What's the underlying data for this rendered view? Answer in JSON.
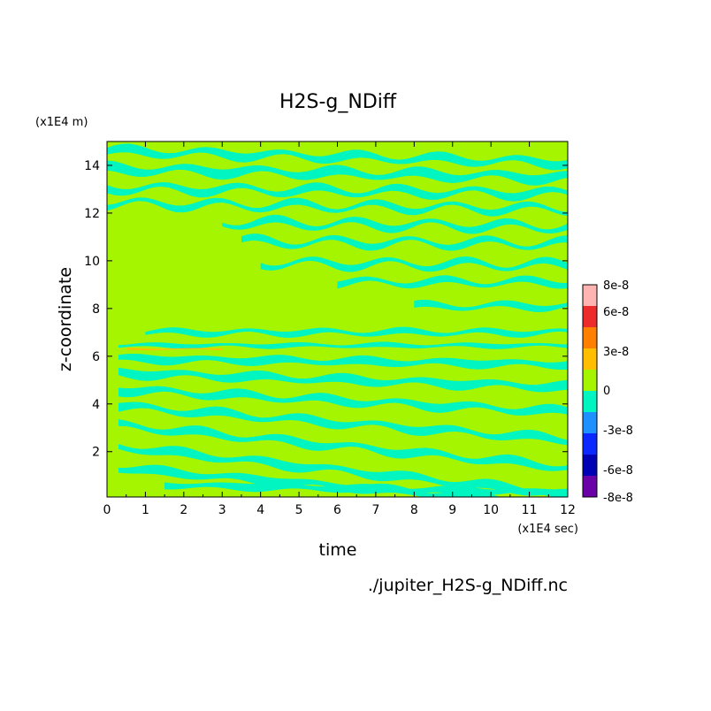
{
  "chart_data": {
    "type": "heatmap",
    "title": "H2S-g_NDiff",
    "xlabel": "time",
    "ylabel": "z-coordinate",
    "x_unit_label": "(x1E4 sec)",
    "y_unit_label": "(x1E4 m)",
    "source_label": "./jupiter_H2S-g_NDiff.nc",
    "xlim": [
      0,
      12
    ],
    "ylim": [
      0.1,
      15
    ],
    "x_ticks": [
      "0",
      "1",
      "2",
      "3",
      "4",
      "5",
      "6",
      "7",
      "8",
      "9",
      "10",
      "11",
      "12"
    ],
    "y_ticks": [
      "2",
      "4",
      "6",
      "8",
      "10",
      "12",
      "14"
    ],
    "grid": false,
    "colorbar": {
      "position": "right",
      "tick_labels": [
        "8e-8",
        "6e-8",
        "3e-8",
        "0",
        "-3e-8",
        "-6e-8",
        "-8e-8"
      ],
      "levels": [
        {
          "color": "#ffb4b4"
        },
        {
          "color": "#ee2b2b"
        },
        {
          "color": "#ff7f00"
        },
        {
          "color": "#ffbf00"
        },
        {
          "color": "#a6f500"
        },
        {
          "color": "#00f5c0"
        },
        {
          "color": "#1e90ff"
        },
        {
          "color": "#0a28ff"
        },
        {
          "color": "#0000b4"
        },
        {
          "color": "#6a00a8"
        }
      ]
    },
    "background_color": "#a6f500",
    "bands": [
      {
        "z": 14.6,
        "t0": 0,
        "t1": 12,
        "slope": -0.04,
        "w": 0.28,
        "wav": 0.15,
        "color": "#00f5c0"
      },
      {
        "z": 13.85,
        "t0": 0,
        "t1": 12,
        "slope": -0.03,
        "w": 0.32,
        "wav": 0.15,
        "color": "#00f5c0"
      },
      {
        "z": 13.05,
        "t0": 0,
        "t1": 12,
        "slope": -0.02,
        "w": 0.26,
        "wav": 0.18,
        "color": "#00f5c0"
      },
      {
        "z": 12.4,
        "t0": 0,
        "t1": 12,
        "slope": -0.02,
        "w": 0.22,
        "wav": 0.2,
        "color": "#00f5c0"
      },
      {
        "z": 11.6,
        "t0": 3,
        "t1": 12,
        "slope": -0.02,
        "w": 0.24,
        "wav": 0.2,
        "color": "#00f5c0"
      },
      {
        "z": 10.8,
        "t0": 3.5,
        "t1": 12,
        "slope": -0.01,
        "w": 0.22,
        "wav": 0.2,
        "color": "#00f5c0"
      },
      {
        "z": 9.9,
        "t0": 4,
        "t1": 12,
        "slope": -0.01,
        "w": 0.22,
        "wav": 0.2,
        "color": "#00f5c0"
      },
      {
        "z": 9.1,
        "t0": 6,
        "t1": 12,
        "slope": 0,
        "w": 0.22,
        "wav": 0.15,
        "color": "#00f5c0"
      },
      {
        "z": 8.1,
        "t0": 8,
        "t1": 12,
        "slope": 0,
        "w": 0.22,
        "wav": 0.12,
        "color": "#00f5c0"
      },
      {
        "z": 7.0,
        "t0": 1,
        "t1": 12,
        "slope": 0,
        "w": 0.2,
        "wav": 0.1,
        "color": "#00f5c0"
      },
      {
        "z": 6.45,
        "t0": 0.3,
        "t1": 12,
        "slope": 0,
        "w": 0.16,
        "wav": 0.05,
        "color": "#00f5c0"
      },
      {
        "z": 5.9,
        "t0": 0.3,
        "t1": 12,
        "slope": -0.02,
        "w": 0.28,
        "wav": 0.08,
        "color": "#00f5c0"
      },
      {
        "z": 5.3,
        "t0": 0.3,
        "t1": 12,
        "slope": -0.05,
        "w": 0.3,
        "wav": 0.1,
        "color": "#00f5c0"
      },
      {
        "z": 4.6,
        "t0": 0.3,
        "t1": 12,
        "slope": -0.08,
        "w": 0.28,
        "wav": 0.12,
        "color": "#00f5c0"
      },
      {
        "z": 3.9,
        "t0": 0.3,
        "t1": 12,
        "slope": -0.12,
        "w": 0.28,
        "wav": 0.12,
        "color": "#00f5c0"
      },
      {
        "z": 3.1,
        "t0": 0.3,
        "t1": 12,
        "slope": -0.15,
        "w": 0.28,
        "wav": 0.12,
        "color": "#00f5c0"
      },
      {
        "z": 2.2,
        "t0": 0.3,
        "t1": 12,
        "slope": -0.17,
        "w": 0.3,
        "wav": 0.1,
        "color": "#00f5c0"
      },
      {
        "z": 1.3,
        "t0": 0.3,
        "t1": 12,
        "slope": -0.13,
        "w": 0.3,
        "wav": 0.08,
        "color": "#00f5c0"
      },
      {
        "z": 0.6,
        "t0": 1.5,
        "t1": 12,
        "slope": -0.03,
        "w": 0.25,
        "wav": 0.05,
        "color": "#00f5c0"
      },
      {
        "z": 6.3,
        "t0": 0.5,
        "t1": 3,
        "slope": 0,
        "w": 0.06,
        "wav": 0.02,
        "color": "#ffbf00"
      }
    ]
  }
}
